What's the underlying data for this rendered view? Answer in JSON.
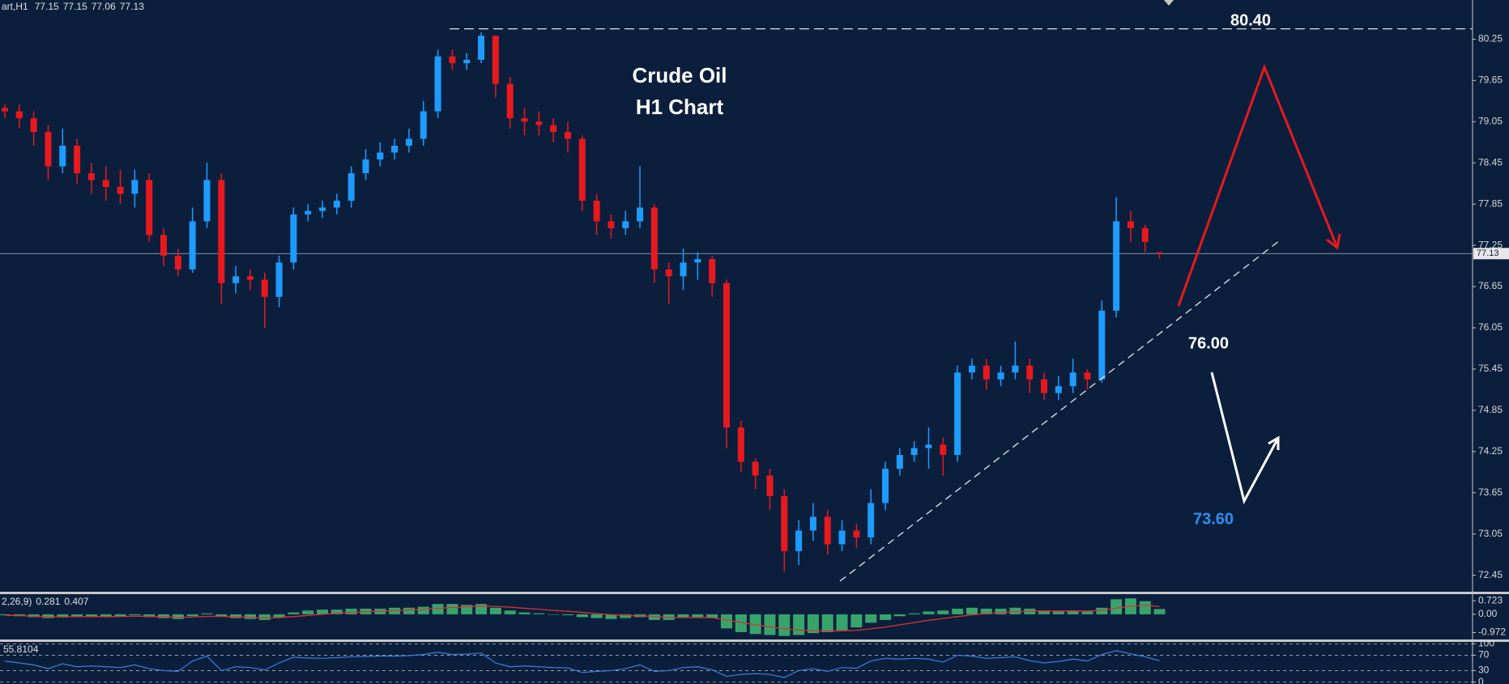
{
  "chart_data": [
    {
      "type": "candlestick",
      "title": "Crude Oil",
      "subtitle": "H1 Chart",
      "symbol": "art,H1",
      "up_color": "#1e9bff",
      "down_color": "#e8191e",
      "open": [
        79.25,
        79.2,
        79.1,
        78.9,
        78.4,
        78.7,
        78.3,
        78.2,
        78.1,
        78.0,
        78.2,
        77.4,
        77.1,
        76.9,
        77.6,
        78.2,
        76.7,
        76.8,
        76.75,
        76.5,
        77.0,
        77.7,
        77.75,
        77.8,
        77.9,
        78.3,
        78.5,
        78.6,
        78.7,
        78.8,
        79.2,
        80.0,
        79.9,
        79.95,
        80.3,
        79.6,
        79.1,
        79.05,
        79.0,
        78.9,
        78.8,
        77.9,
        77.6,
        77.5,
        77.6,
        77.8,
        76.9,
        76.8,
        77.0,
        77.05,
        76.7,
        74.6,
        74.1,
        73.9,
        73.6,
        72.8,
        73.1,
        73.3,
        72.9,
        73.1,
        73.0,
        73.5,
        74.0,
        74.2,
        74.3,
        74.35,
        74.2,
        75.4,
        75.5,
        75.3,
        75.4,
        75.5,
        75.3,
        75.1,
        75.2,
        75.4,
        75.3,
        76.3,
        77.6,
        77.5,
        77.15
      ],
      "high": [
        79.3,
        79.3,
        79.2,
        79.0,
        78.95,
        78.8,
        78.45,
        78.4,
        78.35,
        78.35,
        78.3,
        77.5,
        77.2,
        77.8,
        78.45,
        78.3,
        76.95,
        76.9,
        76.85,
        77.1,
        77.8,
        77.85,
        77.9,
        78.0,
        78.4,
        78.65,
        78.75,
        78.8,
        78.95,
        79.35,
        80.1,
        80.1,
        80.05,
        80.35,
        80.3,
        79.7,
        79.25,
        79.2,
        79.1,
        79.05,
        78.85,
        78.0,
        77.7,
        77.75,
        78.4,
        77.85,
        77.0,
        77.2,
        77.15,
        77.1,
        76.75,
        74.7,
        74.15,
        74.0,
        73.7,
        73.25,
        73.5,
        73.4,
        73.25,
        73.2,
        73.7,
        74.1,
        74.3,
        74.4,
        74.6,
        74.45,
        75.5,
        75.6,
        75.6,
        75.5,
        75.85,
        75.6,
        75.4,
        75.35,
        75.6,
        75.45,
        76.45,
        77.95,
        77.75,
        77.55,
        77.15
      ],
      "low": [
        79.1,
        78.95,
        78.7,
        78.2,
        78.3,
        78.15,
        78.0,
        77.9,
        77.85,
        77.8,
        77.3,
        76.95,
        76.8,
        76.85,
        77.5,
        76.4,
        76.55,
        76.6,
        76.05,
        76.35,
        76.9,
        77.6,
        77.65,
        77.7,
        77.8,
        78.2,
        78.4,
        78.5,
        78.6,
        78.7,
        79.1,
        79.8,
        79.8,
        79.9,
        79.4,
        78.95,
        78.85,
        78.85,
        78.75,
        78.6,
        77.75,
        77.4,
        77.35,
        77.4,
        77.5,
        76.7,
        76.4,
        76.6,
        76.75,
        76.5,
        74.3,
        73.95,
        73.7,
        73.4,
        72.5,
        72.6,
        72.95,
        72.75,
        72.8,
        72.85,
        72.9,
        73.4,
        73.9,
        74.1,
        74.0,
        73.9,
        74.1,
        75.3,
        75.15,
        75.2,
        75.3,
        75.1,
        75.0,
        75.0,
        75.1,
        75.15,
        75.25,
        76.2,
        77.3,
        77.15,
        77.06
      ],
      "close": [
        79.2,
        79.1,
        78.9,
        78.4,
        78.7,
        78.3,
        78.2,
        78.1,
        78.0,
        78.2,
        77.4,
        77.1,
        76.9,
        77.6,
        78.2,
        76.7,
        76.8,
        76.75,
        76.5,
        77.0,
        77.7,
        77.75,
        77.8,
        77.9,
        78.3,
        78.5,
        78.6,
        78.7,
        78.8,
        79.2,
        80.0,
        79.9,
        79.95,
        80.3,
        79.6,
        79.1,
        79.05,
        79.0,
        78.9,
        78.8,
        77.9,
        77.6,
        77.5,
        77.6,
        77.8,
        76.9,
        76.8,
        77.0,
        77.05,
        76.7,
        74.6,
        74.1,
        73.9,
        73.6,
        72.8,
        73.1,
        73.3,
        72.9,
        73.1,
        73.0,
        73.5,
        74.0,
        74.2,
        74.3,
        74.35,
        74.2,
        75.4,
        75.5,
        75.3,
        75.4,
        75.5,
        75.3,
        75.1,
        75.2,
        75.4,
        75.3,
        76.3,
        77.6,
        77.5,
        77.3,
        77.13
      ],
      "ylim": [
        72.21,
        80.82
      ],
      "yticks": [
        80.25,
        79.65,
        79.05,
        78.45,
        77.85,
        77.25,
        76.65,
        76.05,
        75.45,
        74.85,
        74.25,
        73.65,
        73.05,
        72.45
      ],
      "levels": [
        {
          "value": 80.4,
          "label": "80.40",
          "color": "#ffffff",
          "line": true
        },
        {
          "value": 76,
          "label": "76.00",
          "color": "#ffffff",
          "line": false
        },
        {
          "value": 73.6,
          "label": "73.60",
          "color": "#2f8ff0",
          "line": false
        }
      ]
    },
    {
      "type": "macd",
      "label": "2,26,9)",
      "color": "#3cb371",
      "signal_color": "#e03030",
      "values": [
        -0.05,
        -0.1,
        -0.15,
        -0.2,
        -0.15,
        -0.1,
        -0.1,
        -0.15,
        -0.1,
        -0.05,
        -0.15,
        -0.2,
        -0.25,
        -0.1,
        0.05,
        -0.1,
        -0.2,
        -0.25,
        -0.3,
        -0.15,
        0.1,
        0.2,
        0.25,
        0.25,
        0.3,
        0.3,
        0.3,
        0.35,
        0.35,
        0.4,
        0.55,
        0.55,
        0.5,
        0.55,
        0.35,
        0.2,
        0.1,
        0.05,
        0,
        -0.05,
        -0.15,
        -0.2,
        -0.25,
        -0.2,
        -0.15,
        -0.3,
        -0.3,
        -0.2,
        -0.15,
        -0.2,
        -0.75,
        -0.95,
        -1.05,
        -1.1,
        -1.15,
        -1.1,
        -1.0,
        -0.95,
        -0.85,
        -0.7,
        -0.45,
        -0.3,
        -0.1,
        0.05,
        0.15,
        0.2,
        0.3,
        0.35,
        0.3,
        0.3,
        0.35,
        0.3,
        0.2,
        0.15,
        0.2,
        0.15,
        0.35,
        0.8,
        0.85,
        0.7,
        0.281
      ],
      "signal": [
        -0.05,
        -0.07,
        -0.1,
        -0.13,
        -0.14,
        -0.13,
        -0.12,
        -0.13,
        -0.12,
        -0.1,
        -0.11,
        -0.13,
        -0.16,
        -0.15,
        -0.11,
        -0.11,
        -0.13,
        -0.16,
        -0.19,
        -0.18,
        -0.12,
        -0.06,
        0.0,
        0.05,
        0.1,
        0.14,
        0.17,
        0.2,
        0.23,
        0.26,
        0.32,
        0.37,
        0.4,
        0.43,
        0.42,
        0.38,
        0.32,
        0.27,
        0.21,
        0.16,
        0.1,
        0.04,
        -0.02,
        -0.06,
        -0.08,
        -0.12,
        -0.16,
        -0.17,
        -0.17,
        -0.18,
        -0.3,
        -0.43,
        -0.56,
        -0.67,
        -0.77,
        -0.84,
        -0.87,
        -0.89,
        -0.88,
        -0.85,
        -0.77,
        -0.68,
        -0.56,
        -0.44,
        -0.32,
        -0.22,
        -0.12,
        -0.03,
        0.04,
        0.09,
        0.14,
        0.17,
        0.18,
        0.17,
        0.18,
        0.17,
        0.21,
        0.33,
        0.43,
        0.48,
        0.407
      ],
      "ylim": [
        -1.34,
        1.03
      ],
      "yticks": [
        0.723,
        {
          "value": 0,
          "label": "0.00"
        },
        -0.972
      ]
    },
    {
      "type": "line",
      "color": "#3d7fe0",
      "values": [
        55,
        50,
        45,
        35,
        48,
        40,
        42,
        40,
        38,
        45,
        35,
        30,
        28,
        55,
        68,
        30,
        40,
        38,
        32,
        50,
        65,
        63,
        62,
        64,
        66,
        67,
        68,
        68,
        69,
        72,
        78,
        72,
        73,
        76,
        50,
        40,
        42,
        40,
        38,
        37,
        25,
        28,
        30,
        35,
        45,
        28,
        30,
        38,
        40,
        32,
        15,
        20,
        22,
        20,
        12,
        30,
        35,
        28,
        38,
        36,
        55,
        62,
        60,
        62,
        60,
        52,
        70,
        68,
        62,
        64,
        66,
        56,
        50,
        54,
        60,
        55,
        72,
        82,
        74,
        66,
        55.8104
      ],
      "ylim": [
        -5,
        105
      ],
      "yticks": [
        100,
        70,
        30,
        0
      ],
      "grid": true
    }
  ]
}
